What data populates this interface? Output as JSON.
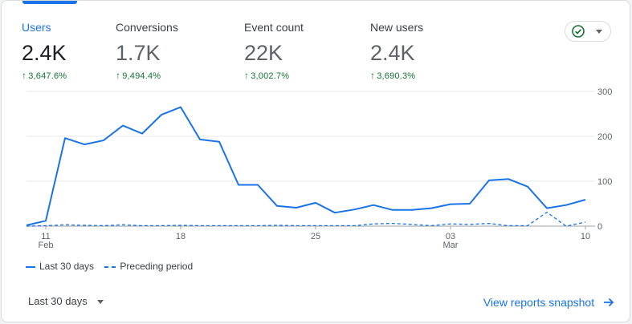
{
  "metrics": [
    {
      "label": "Users",
      "value": "2.4K",
      "change": "3,647.6%"
    },
    {
      "label": "Conversions",
      "value": "1.7K",
      "change": "9,494.4%"
    },
    {
      "label": "Event count",
      "value": "22K",
      "change": "3,002.7%"
    },
    {
      "label": "New users",
      "value": "2.4K",
      "change": "3,690.3%"
    }
  ],
  "colors": {
    "accent": "#1a73e8",
    "positive": "#137333",
    "status": "#137333"
  },
  "status_icon": "check-circle-icon",
  "chart_data": {
    "type": "line",
    "title": "",
    "xlabel": "",
    "ylabel": "",
    "ylim": [
      0,
      300
    ],
    "yticks": [
      "300",
      "200",
      "100",
      "0"
    ],
    "ytick_values": [
      300,
      200,
      100,
      0
    ],
    "xticks": [
      {
        "day": "11",
        "month": "Feb",
        "index": 1
      },
      {
        "day": "18",
        "month": "",
        "index": 8
      },
      {
        "day": "25",
        "month": "",
        "index": 15
      },
      {
        "day": "03",
        "month": "Mar",
        "index": 22
      },
      {
        "day": "10",
        "month": "",
        "index": 29
      }
    ],
    "series": [
      {
        "name": "Last 30 days",
        "style": "solid",
        "values": [
          2,
          12,
          196,
          182,
          191,
          224,
          206,
          248,
          265,
          193,
          188,
          92,
          92,
          45,
          41,
          52,
          30,
          37,
          47,
          36,
          36,
          40,
          49,
          50,
          102,
          105,
          88,
          40,
          47,
          59
        ]
      },
      {
        "name": "Preceding period",
        "style": "dashed",
        "values": [
          0,
          1,
          3,
          2,
          1,
          3,
          1,
          1,
          2,
          1,
          1,
          1,
          1,
          2,
          1,
          1,
          1,
          1,
          5,
          6,
          4,
          1,
          5,
          4,
          6,
          1,
          1,
          31,
          0,
          9
        ]
      }
    ]
  },
  "legend": {
    "current": "Last 30 days",
    "previous": "Preceding period"
  },
  "footer": {
    "period_label": "Last 30 days",
    "link_label": "View reports snapshot"
  }
}
